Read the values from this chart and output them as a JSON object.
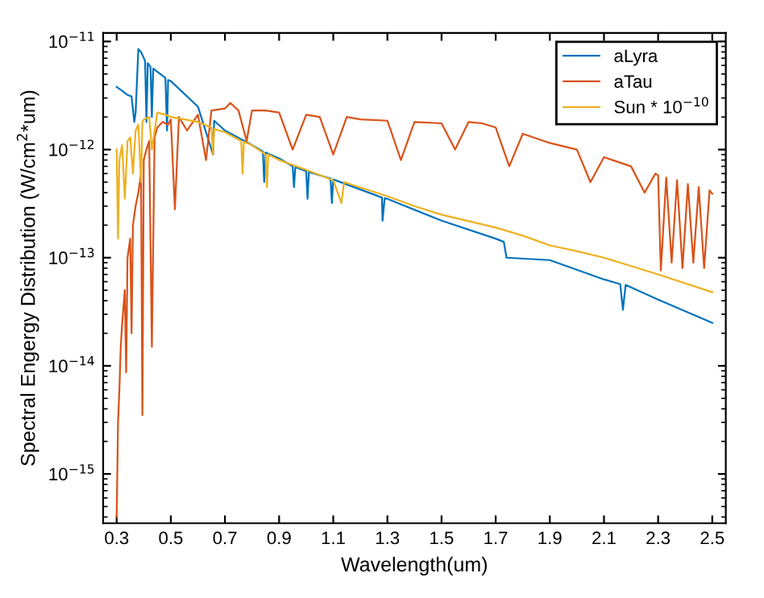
{
  "chart_data": {
    "type": "line",
    "xlabel": "Wavelength(um)",
    "ylabel": "Spectral Engergy Distribution (W/cm$^{2}$*um)",
    "log": "y",
    "grid": false,
    "legend": "top right",
    "marker": "none",
    "line_style": "solid",
    "xlim": [
      0.25,
      2.55
    ],
    "xticks": [
      0.3,
      0.5,
      0.7,
      0.9,
      1.1,
      1.3,
      1.5,
      1.7,
      1.9,
      2.1,
      2.3,
      2.5
    ],
    "ylim": [
      3.5e-16,
      1.2e-11
    ],
    "yticks": [
      {
        "value": 1e-15,
        "label": "10$^{−15}$"
      },
      {
        "value": 1e-14,
        "label": "10$^{−14}$"
      },
      {
        "value": 1e-13,
        "label": "10$^{−13}$"
      },
      {
        "value": 1e-12,
        "label": "10$^{−12}$"
      },
      {
        "value": 1e-11,
        "label": "10$^{−11}$"
      }
    ],
    "series": [
      {
        "name": "aLyra",
        "color": "#0072bd",
        "x": [
          0.3,
          0.32,
          0.34,
          0.355,
          0.365,
          0.37,
          0.38,
          0.39,
          0.405,
          0.41,
          0.415,
          0.425,
          0.43,
          0.435,
          0.48,
          0.486,
          0.49,
          0.5,
          0.6,
          0.656,
          0.66,
          0.7,
          0.8,
          0.84,
          0.845,
          0.85,
          0.9,
          0.95,
          0.955,
          0.96,
          1.0,
          1.005,
          1.01,
          1.09,
          1.095,
          1.1,
          1.28,
          1.282,
          1.29,
          1.3,
          1.5,
          1.7,
          1.73,
          1.74,
          1.9,
          2.1,
          2.16,
          2.17,
          2.18,
          2.3,
          2.5
        ],
        "values": [
          3.8e-12,
          3.5e-12,
          3.2e-12,
          3.1e-12,
          1.8e-12,
          2.2e-12,
          8.5e-12,
          8e-12,
          6.6e-12,
          1.8e-12,
          6.3e-12,
          5.8e-12,
          2e-12,
          5.6e-12,
          4.6e-12,
          1.5e-12,
          4.4e-12,
          4.3e-12,
          2.5e-12,
          9e-13,
          1.85e-12,
          1.5e-12,
          1.1e-12,
          9.6e-13,
          5e-13,
          9.4e-13,
          8.3e-13,
          7e-13,
          4.5e-13,
          6.9e-13,
          6.3e-13,
          3.5e-13,
          6.2e-13,
          5.4e-13,
          3.2e-13,
          5.3e-13,
          3.6e-13,
          2.2e-13,
          3.55e-13,
          3.5e-13,
          2.2e-13,
          1.5e-13,
          1.4e-13,
          1e-13,
          9.5e-14,
          6.3e-14,
          5.7e-14,
          3.3e-14,
          5.6e-14,
          4.1e-14,
          2.5e-14
        ]
      },
      {
        "name": "aTau",
        "color": "#d95319",
        "x": [
          0.3,
          0.305,
          0.31,
          0.315,
          0.32,
          0.33,
          0.335,
          0.34,
          0.35,
          0.355,
          0.36,
          0.37,
          0.38,
          0.39,
          0.395,
          0.4,
          0.41,
          0.42,
          0.43,
          0.44,
          0.45,
          0.47,
          0.49,
          0.5,
          0.515,
          0.53,
          0.56,
          0.6,
          0.63,
          0.65,
          0.7,
          0.72,
          0.75,
          0.78,
          0.8,
          0.85,
          0.9,
          0.95,
          1.0,
          1.05,
          1.1,
          1.15,
          1.2,
          1.3,
          1.35,
          1.4,
          1.5,
          1.55,
          1.6,
          1.65,
          1.7,
          1.75,
          1.8,
          1.9,
          2.0,
          2.05,
          2.1,
          2.2,
          2.25,
          2.29,
          2.3,
          2.31,
          2.33,
          2.35,
          2.37,
          2.39,
          2.41,
          2.43,
          2.45,
          2.47,
          2.49,
          2.5
        ],
        "values": [
          4e-16,
          3e-15,
          6e-15,
          1.5e-14,
          2.4e-14,
          5e-14,
          8.7e-15,
          1e-13,
          1.5e-13,
          2e-14,
          2e-13,
          3e-13,
          4e-13,
          6e-13,
          3.5e-15,
          8e-13,
          1e-12,
          1.2e-12,
          1.5e-14,
          1.3e-12,
          1.6e-12,
          1.8e-12,
          1.7e-12,
          1.9e-12,
          2.8e-13,
          2e-12,
          1.5e-12,
          2.1e-12,
          8e-13,
          2.3e-12,
          2.4e-12,
          2.7e-12,
          2.3e-12,
          1.2e-12,
          2.3e-12,
          2.3e-12,
          2.2e-12,
          1e-12,
          2.1e-12,
          2e-12,
          9e-13,
          2e-12,
          1.9e-12,
          1.85e-12,
          8e-13,
          1.8e-12,
          1.75e-12,
          1e-12,
          1.8e-12,
          1.75e-12,
          1.6e-12,
          7e-13,
          1.4e-12,
          1.15e-12,
          1e-12,
          5e-13,
          8.5e-13,
          7e-13,
          4e-13,
          6e-13,
          5.8e-13,
          7.6e-14,
          5.5e-13,
          9e-14,
          5.2e-13,
          8e-14,
          4.8e-13,
          9e-14,
          4.5e-13,
          8e-14,
          4.2e-13,
          3.9e-13
        ]
      },
      {
        "name": "Sun * 10$^{−10}$",
        "color": "#edb120",
        "x": [
          0.3,
          0.305,
          0.31,
          0.32,
          0.33,
          0.34,
          0.35,
          0.36,
          0.37,
          0.38,
          0.39,
          0.395,
          0.4,
          0.42,
          0.43,
          0.45,
          0.48,
          0.5,
          0.55,
          0.6,
          0.65,
          0.656,
          0.66,
          0.7,
          0.76,
          0.765,
          0.77,
          0.8,
          0.85,
          0.855,
          0.86,
          0.9,
          1.0,
          1.1,
          1.13,
          1.14,
          1.3,
          1.4,
          1.5,
          1.7,
          1.8,
          1.9,
          2.0,
          2.1,
          2.3,
          2.5
        ],
        "values": [
          1e-12,
          1.5e-13,
          8e-13,
          1.1e-12,
          3.5e-13,
          1.2e-12,
          1.3e-12,
          6e-13,
          1.5e-12,
          1.7e-12,
          5e-13,
          1.8e-12,
          1.9e-12,
          2e-12,
          1e-12,
          2.2e-12,
          2.1e-12,
          2e-12,
          1.9e-12,
          1.8e-12,
          1.6e-12,
          9e-13,
          1.55e-12,
          1.45e-12,
          1.2e-12,
          6e-13,
          1.18e-12,
          1.1e-12,
          9e-13,
          4.5e-13,
          9e-13,
          8e-13,
          6.5e-13,
          5.2e-13,
          3.2e-13,
          5e-13,
          3.7e-13,
          3e-13,
          2.5e-13,
          1.9e-13,
          1.6e-13,
          1.3e-13,
          1.15e-13,
          1e-13,
          7e-14,
          4.8e-14
        ]
      }
    ]
  }
}
